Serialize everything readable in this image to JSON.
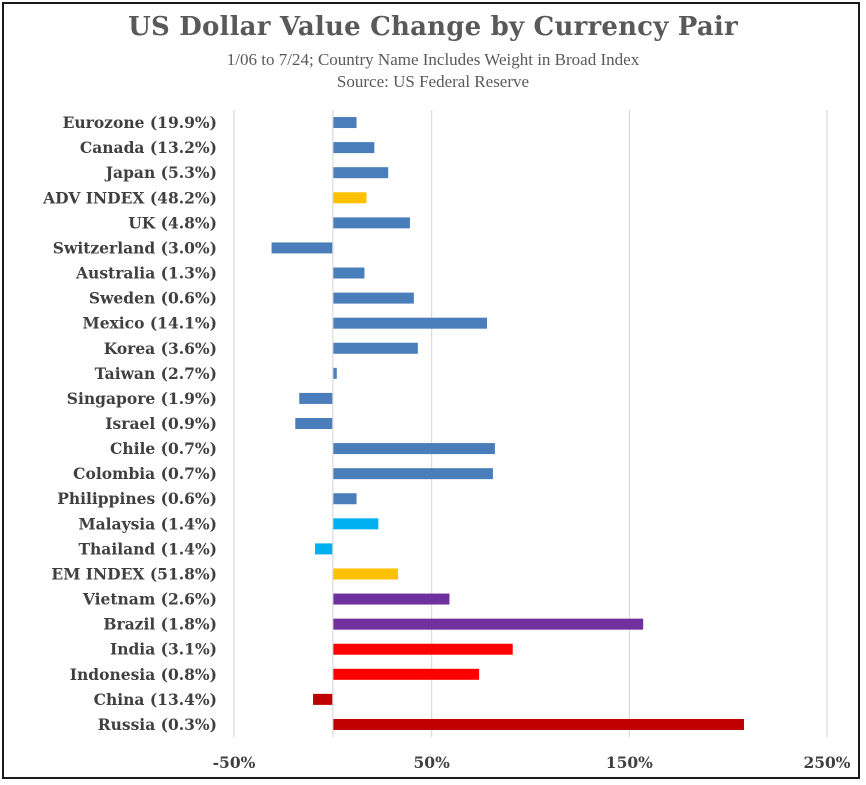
{
  "chart_data": {
    "type": "bar",
    "orientation": "horizontal",
    "title": "US Dollar Value Change by Currency Pair",
    "subtitle": "1/06 to 7/24; Country Name Includes Weight in Broad Index",
    "source": "Source: US Federal Reserve",
    "xlim": [
      -50,
      250
    ],
    "xticks": [
      -50,
      50,
      150,
      250
    ],
    "xtick_labels": [
      "-50%",
      "50%",
      "150%",
      "250%"
    ],
    "grid": true,
    "categories": [
      "Eurozone (19.9%)",
      "Canada (13.2%)",
      "Japan (5.3%)",
      "ADV INDEX (48.2%)",
      "UK (4.8%)",
      "Switzerland (3.0%)",
      "Australia (1.3%)",
      "Sweden (0.6%)",
      "Mexico (14.1%)",
      "Korea (3.6%)",
      "Taiwan (2.7%)",
      "Singapore (1.9%)",
      "Israel (0.9%)",
      "Chile (0.7%)",
      "Colombia (0.7%)",
      "Philippines (0.6%)",
      "Malaysia (1.4%)",
      "Thailand (1.4%)",
      "EM INDEX (51.8%)",
      "Vietnam (2.6%)",
      "Brazil (1.8%)",
      "India (3.1%)",
      "Indonesia (0.8%)",
      "China (13.4%)",
      "Russia (0.3%)"
    ],
    "values": [
      12,
      21,
      28,
      17,
      39,
      -31,
      16,
      41,
      78,
      43,
      2,
      -17,
      -19,
      82,
      81,
      12,
      23,
      -9,
      33,
      59,
      157,
      91,
      74,
      -10,
      208
    ],
    "colors": [
      "#4a7ebb",
      "#4a7ebb",
      "#4a7ebb",
      "#ffc000",
      "#4a7ebb",
      "#4a7ebb",
      "#4a7ebb",
      "#4a7ebb",
      "#4a7ebb",
      "#4a7ebb",
      "#4a7ebb",
      "#4a7ebb",
      "#4a7ebb",
      "#4a7ebb",
      "#4a7ebb",
      "#4a7ebb",
      "#00b0f0",
      "#00b0f0",
      "#ffc000",
      "#7030a0",
      "#7030a0",
      "#ff0000",
      "#ff0000",
      "#c00000",
      "#c00000"
    ]
  }
}
